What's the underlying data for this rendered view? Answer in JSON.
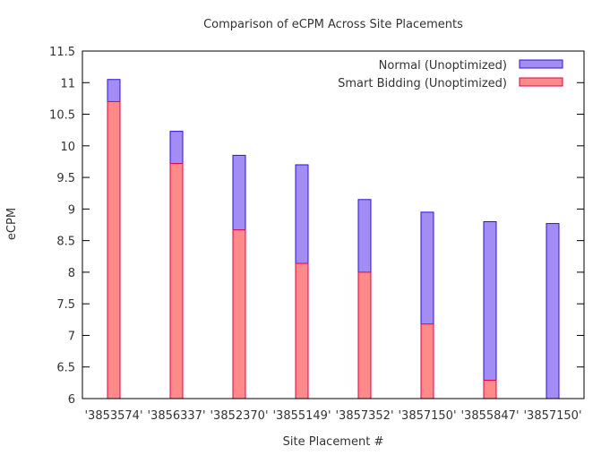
{
  "chart_data": {
    "type": "bar",
    "title": "Comparison of eCPM Across Site Placements",
    "xlabel": "Site Placement #",
    "ylabel": "eCPM",
    "ylim": [
      6,
      11.5
    ],
    "yticks": [
      "6",
      "6.5",
      "7",
      "7.5",
      "8",
      "8.5",
      "9",
      "9.5",
      "10",
      "10.5",
      "11",
      "11.5"
    ],
    "categories": [
      "'3853574'",
      "'3856337'",
      "'3852370'",
      "'3855149'",
      "'3857352'",
      "'3857150'",
      "'3855847'",
      "'3857150'"
    ],
    "series": [
      {
        "name": "Normal (Unoptimized)",
        "values": [
          11.05,
          10.23,
          9.85,
          9.7,
          9.15,
          8.95,
          8.8,
          8.77
        ],
        "fill": "#a38cf4",
        "stroke": "#2b14d8"
      },
      {
        "name": "Smart Bidding (Unoptimized)",
        "values": [
          10.7,
          9.72,
          8.67,
          8.14,
          8.0,
          7.18,
          6.29,
          null
        ],
        "fill": "#ff8a8a",
        "stroke": "#e0004a"
      }
    ],
    "grid": false,
    "legend_position": "top-right"
  }
}
